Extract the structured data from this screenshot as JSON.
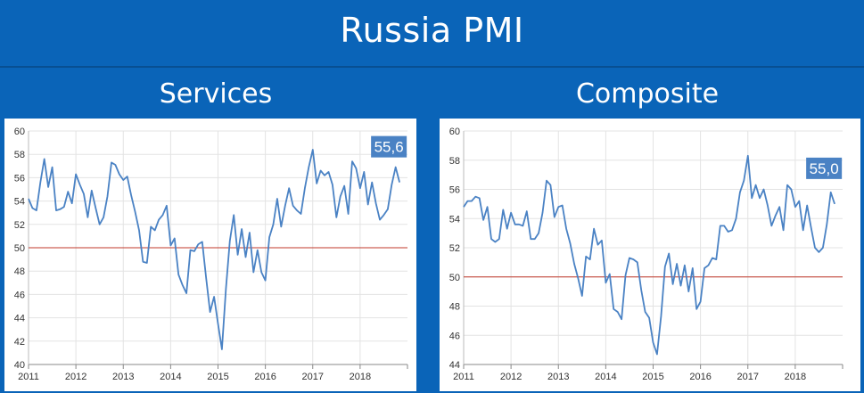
{
  "header": {
    "title": "Russia PMI"
  },
  "colors": {
    "background": "#0a64b8",
    "line": "#4a82c4",
    "threshold": "#c0392b",
    "badge": "#4a82c4"
  },
  "chart_data": [
    {
      "type": "line",
      "title": "Services",
      "ylim": [
        40,
        60
      ],
      "yticks": [
        40,
        42,
        44,
        46,
        48,
        50,
        52,
        54,
        56,
        58,
        60
      ],
      "xticks": [
        "2011",
        "2012",
        "2013",
        "2014",
        "2015",
        "2016",
        "2017",
        "2018"
      ],
      "x_start": "2011-01",
      "threshold": 50,
      "last_value_label": "55,6",
      "grid": true,
      "series": [
        {
          "values": [
            54.2,
            53.4,
            53.2,
            55.6,
            57.6,
            55.2,
            56.9,
            53.2,
            53.3,
            53.5,
            54.8,
            53.8,
            56.3,
            55.4,
            54.6,
            52.6,
            54.9,
            53.4,
            52.0,
            52.6,
            54.4,
            57.3,
            57.1,
            56.3,
            55.8,
            56.1,
            54.5,
            53.1,
            51.5,
            48.8,
            48.7,
            51.8,
            51.5,
            52.4,
            52.8,
            53.6,
            50.2,
            50.8,
            47.7,
            46.8,
            46.1,
            49.8,
            49.7,
            50.3,
            50.5,
            47.4,
            44.5,
            45.8,
            43.5,
            41.3,
            46.5,
            50.6,
            52.8,
            49.4,
            51.6,
            49.2,
            51.3,
            47.9,
            49.8,
            47.9,
            47.2,
            50.9,
            52.0,
            54.2,
            51.8,
            53.6,
            55.1,
            53.6,
            53.2,
            52.9,
            55.1,
            56.9,
            58.4,
            55.5,
            56.6,
            56.2,
            56.5,
            55.4,
            52.6,
            54.4,
            55.3,
            52.9,
            57.4,
            56.8,
            55.1,
            56.5,
            53.7,
            55.6,
            53.8,
            52.4,
            52.8,
            53.3,
            55.4,
            56.9,
            55.6
          ]
        }
      ]
    },
    {
      "type": "line",
      "title": "Composite",
      "ylim": [
        44,
        60
      ],
      "yticks": [
        44,
        46,
        48,
        50,
        52,
        54,
        56,
        58,
        60
      ],
      "xticks": [
        "2011",
        "2012",
        "2013",
        "2014",
        "2015",
        "2016",
        "2017",
        "2018"
      ],
      "x_start": "2011-01",
      "threshold": 50,
      "last_value_label": "55,0",
      "grid": true,
      "series": [
        {
          "values": [
            54.8,
            55.2,
            55.2,
            55.5,
            55.4,
            53.9,
            54.8,
            52.6,
            52.4,
            52.6,
            54.6,
            53.3,
            54.4,
            53.6,
            53.6,
            53.5,
            54.5,
            52.6,
            52.6,
            53.0,
            54.4,
            56.6,
            56.3,
            54.1,
            54.8,
            54.9,
            53.3,
            52.3,
            50.9,
            49.9,
            48.7,
            51.4,
            51.2,
            53.3,
            52.2,
            52.5,
            49.6,
            50.2,
            47.8,
            47.6,
            47.1,
            50.1,
            51.3,
            51.2,
            51.0,
            49.1,
            47.6,
            47.2,
            45.5,
            44.7,
            47.3,
            50.7,
            51.6,
            49.5,
            50.9,
            49.4,
            50.8,
            49.0,
            50.6,
            47.8,
            48.3,
            50.6,
            50.8,
            51.3,
            51.2,
            53.5,
            53.5,
            53.1,
            53.2,
            54.0,
            55.8,
            56.6,
            58.3,
            55.4,
            56.3,
            55.4,
            56.0,
            54.9,
            53.5,
            54.2,
            54.8,
            53.2,
            56.3,
            56.0,
            54.8,
            55.2,
            53.2,
            54.9,
            53.4,
            52.0,
            51.7,
            52.0,
            53.6,
            55.8,
            55.0
          ]
        }
      ]
    }
  ]
}
